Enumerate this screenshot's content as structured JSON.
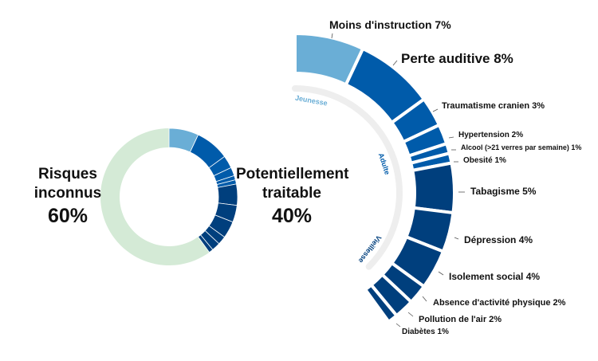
{
  "chart_data": [
    {
      "type": "pie",
      "title": "",
      "variant": "donut",
      "categories": [
        "Potentiellement traitable",
        "Risques inconnus"
      ],
      "values": [
        40,
        60
      ],
      "colors": [
        "#005BAA",
        "#D4EAD6"
      ],
      "annotations": {
        "unknown": {
          "line1": "Risques",
          "line2": "inconnus",
          "pct": "60%"
        },
        "treatable": {
          "line1": "Potentiellement",
          "line2": "traitable",
          "pct": "40%"
        }
      }
    },
    {
      "type": "pie",
      "variant": "partial-arc",
      "title": "",
      "categories": [
        "Moins d'instruction",
        "Perte auditive",
        "Traumatisme cranien",
        "Hypertension",
        "Alcool (>21 verres par semaine)",
        "Obesité",
        "Tabagisme",
        "Dépression",
        "Isolement social",
        "Absence d'activité physique",
        "Pollution de l'air",
        "Diabètes"
      ],
      "values": [
        7,
        8,
        3,
        2,
        1,
        1,
        5,
        4,
        4,
        2,
        2,
        1
      ],
      "life_stage": [
        "Jeunesse",
        "Adulte",
        "Adulte",
        "Adulte",
        "Adulte",
        "Adulte",
        "Vieillesse",
        "Vieillesse",
        "Vieillesse",
        "Vieillesse",
        "Vieillesse",
        "Vieillesse"
      ],
      "stage_colors": {
        "Jeunesse": "#6AAED6",
        "Adulte": "#005BAA",
        "Vieillesse": "#003F7D"
      },
      "stage_labels": [
        "Jeunesse",
        "Adulte",
        "Vieillesse"
      ],
      "total": 40
    }
  ],
  "donut": {
    "unknown_line1": "Risques",
    "unknown_line2": "inconnus",
    "unknown_pct": "60%",
    "treatable_line1": "Potentiellement",
    "treatable_line2": "traitable",
    "treatable_pct": "40%"
  },
  "stages": {
    "youth": "Jeunesse",
    "adult": "Adulte",
    "old": "Vieillesse"
  },
  "labels": [
    {
      "name": "Moins d'instruction",
      "pct": "7%"
    },
    {
      "name": "Perte auditive",
      "pct": "8%"
    },
    {
      "name": "Traumatisme cranien",
      "pct": "3%"
    },
    {
      "name": "Hypertension",
      "pct": "2%"
    },
    {
      "name": "Alcool (>21 verres par semaine)",
      "pct": "1%"
    },
    {
      "name": "Obesité",
      "pct": "1%"
    },
    {
      "name": "Tabagisme",
      "pct": "5%"
    },
    {
      "name": "Dépression",
      "pct": "4%"
    },
    {
      "name": "Isolement social",
      "pct": "4%"
    },
    {
      "name": "Absence d'activité physique",
      "pct": "2%"
    },
    {
      "name": "Pollution de l'air",
      "pct": "2%"
    },
    {
      "name": "Diabètes",
      "pct": "1%"
    }
  ],
  "colors": {
    "youth": "#6AAED6",
    "adult": "#005BAA",
    "old": "#003F7D",
    "unknown": "#D4EAD6",
    "track": "#EEEEEE"
  }
}
